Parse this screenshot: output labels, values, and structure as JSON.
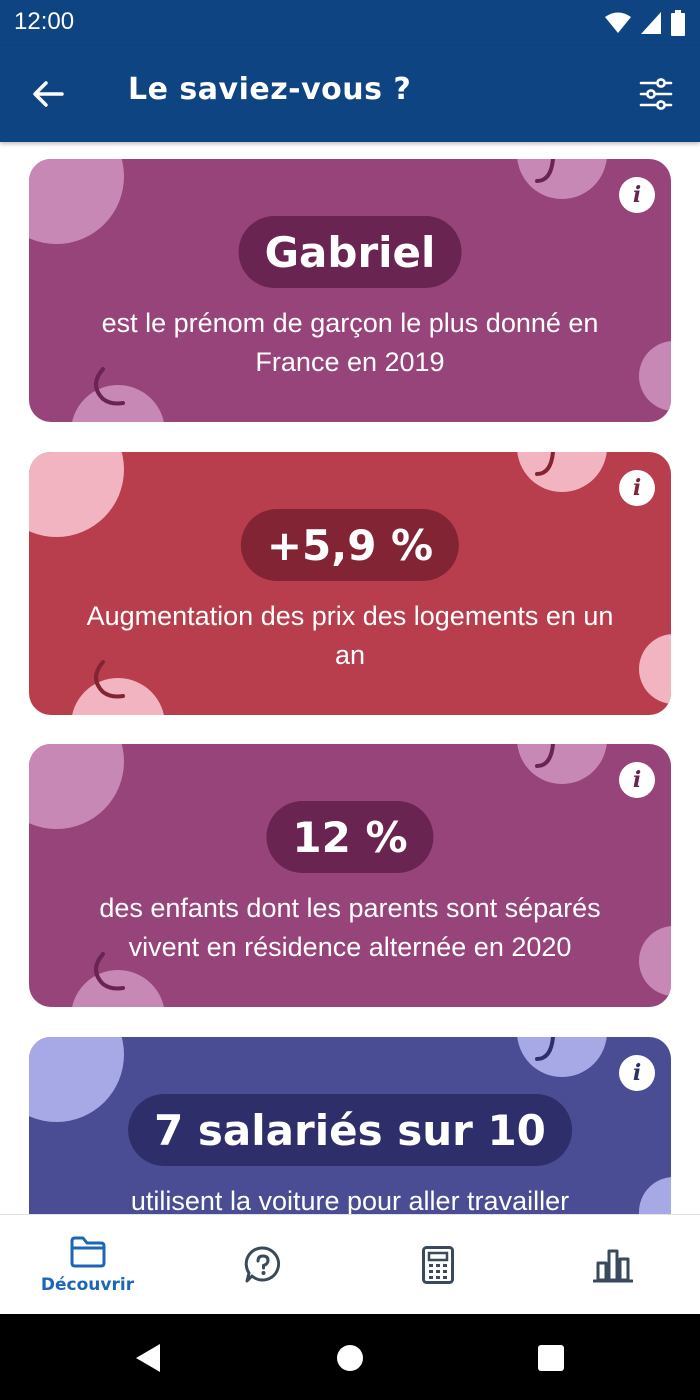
{
  "status_bar": {
    "time": "12:00"
  },
  "app_bar": {
    "title": "Le saviez-vous ?"
  },
  "cards": [
    {
      "highlight": "Gabriel",
      "description": "est le prénom de garçon le plus donné en France en 2019",
      "info": "i",
      "color": "#96447a",
      "pill_color": "#6a2452",
      "deco_color": "#c888b6"
    },
    {
      "highlight": "+5,9 %",
      "description": "Augmentation des prix des logements en un an",
      "info": "i",
      "color": "#b83e4d",
      "pill_color": "#832435",
      "deco_color": "#f2b4c0"
    },
    {
      "highlight": "12 %",
      "description": "des enfants dont les parents sont séparés vivent en résidence alternée en 2020",
      "info": "i",
      "color": "#96447a",
      "pill_color": "#6a2452",
      "deco_color": "#c888b6"
    },
    {
      "highlight": "7 salariés sur 10",
      "description": "utilisent la voiture pour aller travailler",
      "info": "i",
      "color": "#4b4d94",
      "pill_color": "#2e2f6a",
      "deco_color": "#a7a9e6"
    }
  ],
  "bottom_nav": {
    "items": [
      {
        "label": "Découvrir",
        "icon": "folder-icon",
        "active": true
      },
      {
        "label": "",
        "icon": "help-bubble-icon",
        "active": false
      },
      {
        "label": "",
        "icon": "calculator-icon",
        "active": false
      },
      {
        "label": "",
        "icon": "bar-chart-icon",
        "active": false
      }
    ]
  },
  "colors": {
    "primary": "#0f4482",
    "accent": "#1c66b8",
    "nav_icon": "#3a4a5c"
  }
}
